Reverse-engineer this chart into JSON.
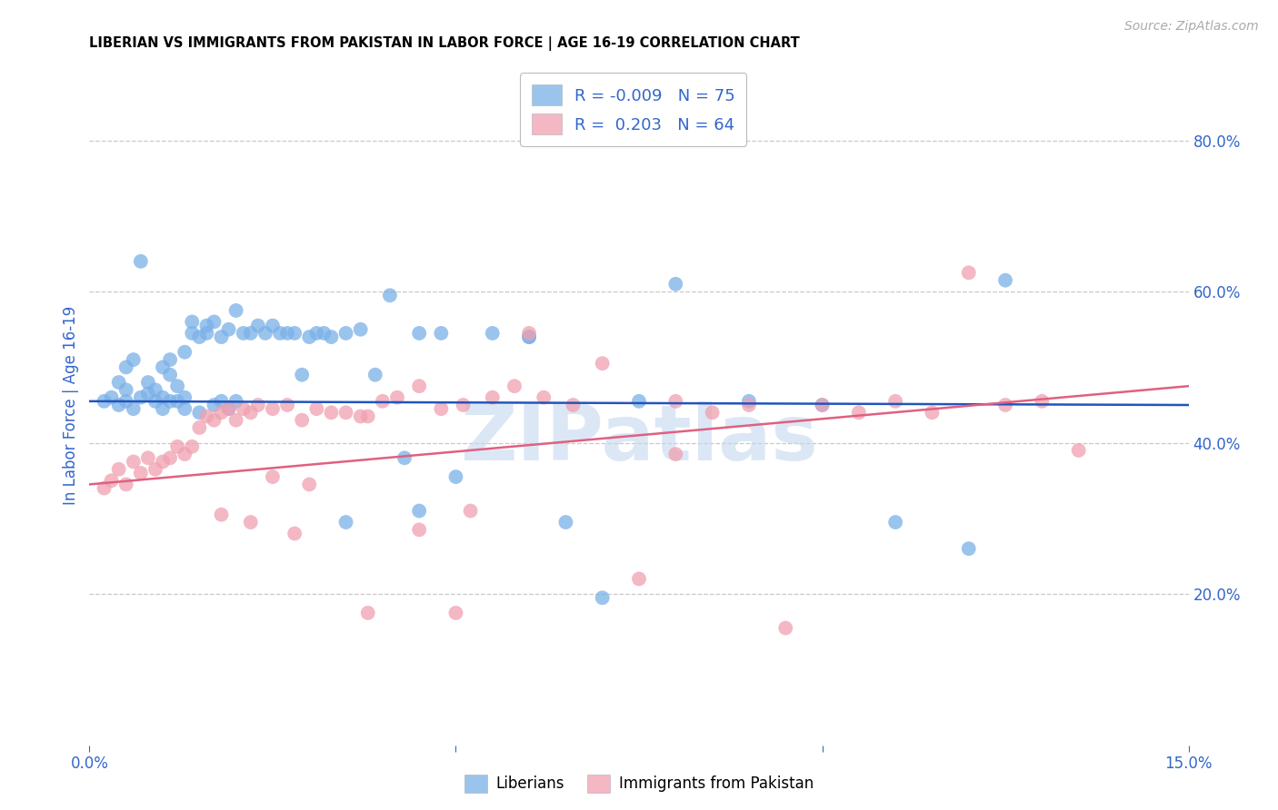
{
  "title": "LIBERIAN VS IMMIGRANTS FROM PAKISTAN IN LABOR FORCE | AGE 16-19 CORRELATION CHART",
  "source": "Source: ZipAtlas.com",
  "ylabel": "In Labor Force | Age 16-19",
  "xlim": [
    0.0,
    0.15
  ],
  "ylim": [
    0.0,
    0.9
  ],
  "xtick_positions": [
    0.0,
    0.05,
    0.1,
    0.15
  ],
  "xticklabels": [
    "0.0%",
    "",
    "",
    "15.0%"
  ],
  "yticks_right": [
    0.2,
    0.4,
    0.6,
    0.8
  ],
  "ytick_labels_right": [
    "20.0%",
    "40.0%",
    "60.0%",
    "80.0%"
  ],
  "grid_color": "#c8c8c8",
  "background_color": "#ffffff",
  "blue_color": "#7ab0e8",
  "pink_color": "#f0a0b0",
  "blue_line_color": "#2255bb",
  "pink_line_color": "#e06080",
  "R_blue": -0.009,
  "N_blue": 75,
  "R_pink": 0.203,
  "N_pink": 64,
  "legend_label_blue": "Liberians",
  "legend_label_pink": "Immigrants from Pakistan",
  "axis_label_color": "#3366cc",
  "tick_label_color": "#3366cc",
  "watermark_text": "ZIPatlas",
  "watermark_color": "#c5d8f0",
  "blue_line_y0": 0.455,
  "blue_line_y1": 0.45,
  "pink_line_y0": 0.345,
  "pink_line_y1": 0.475,
  "blue_points_x": [
    0.002,
    0.003,
    0.004,
    0.004,
    0.005,
    0.005,
    0.005,
    0.006,
    0.006,
    0.007,
    0.007,
    0.008,
    0.008,
    0.009,
    0.009,
    0.01,
    0.01,
    0.01,
    0.011,
    0.011,
    0.011,
    0.012,
    0.012,
    0.013,
    0.013,
    0.013,
    0.014,
    0.014,
    0.015,
    0.015,
    0.016,
    0.016,
    0.017,
    0.017,
    0.018,
    0.018,
    0.019,
    0.019,
    0.02,
    0.02,
    0.021,
    0.022,
    0.023,
    0.024,
    0.025,
    0.026,
    0.027,
    0.028,
    0.029,
    0.03,
    0.031,
    0.032,
    0.033,
    0.035,
    0.037,
    0.039,
    0.041,
    0.043,
    0.045,
    0.048,
    0.05,
    0.055,
    0.06,
    0.065,
    0.07,
    0.075,
    0.08,
    0.09,
    0.1,
    0.11,
    0.12,
    0.125,
    0.06,
    0.045,
    0.035
  ],
  "blue_points_y": [
    0.455,
    0.46,
    0.48,
    0.45,
    0.455,
    0.47,
    0.5,
    0.445,
    0.51,
    0.46,
    0.64,
    0.465,
    0.48,
    0.455,
    0.47,
    0.445,
    0.5,
    0.46,
    0.455,
    0.49,
    0.51,
    0.455,
    0.475,
    0.445,
    0.52,
    0.46,
    0.545,
    0.56,
    0.44,
    0.54,
    0.555,
    0.545,
    0.45,
    0.56,
    0.455,
    0.54,
    0.445,
    0.55,
    0.455,
    0.575,
    0.545,
    0.545,
    0.555,
    0.545,
    0.555,
    0.545,
    0.545,
    0.545,
    0.49,
    0.54,
    0.545,
    0.545,
    0.54,
    0.545,
    0.55,
    0.49,
    0.595,
    0.38,
    0.545,
    0.545,
    0.355,
    0.545,
    0.54,
    0.295,
    0.195,
    0.455,
    0.61,
    0.455,
    0.45,
    0.295,
    0.26,
    0.615,
    0.54,
    0.31,
    0.295
  ],
  "pink_points_x": [
    0.002,
    0.003,
    0.004,
    0.005,
    0.006,
    0.007,
    0.008,
    0.009,
    0.01,
    0.011,
    0.012,
    0.013,
    0.014,
    0.015,
    0.016,
    0.017,
    0.018,
    0.019,
    0.02,
    0.021,
    0.022,
    0.023,
    0.025,
    0.027,
    0.029,
    0.031,
    0.033,
    0.035,
    0.037,
    0.04,
    0.042,
    0.045,
    0.048,
    0.051,
    0.055,
    0.058,
    0.062,
    0.066,
    0.07,
    0.075,
    0.08,
    0.085,
    0.09,
    0.095,
    0.1,
    0.105,
    0.11,
    0.115,
    0.12,
    0.125,
    0.13,
    0.135,
    0.025,
    0.03,
    0.038,
    0.045,
    0.052,
    0.018,
    0.022,
    0.028,
    0.038,
    0.05,
    0.06,
    0.08
  ],
  "pink_points_y": [
    0.34,
    0.35,
    0.365,
    0.345,
    0.375,
    0.36,
    0.38,
    0.365,
    0.375,
    0.38,
    0.395,
    0.385,
    0.395,
    0.42,
    0.435,
    0.43,
    0.44,
    0.445,
    0.43,
    0.445,
    0.44,
    0.45,
    0.445,
    0.45,
    0.43,
    0.445,
    0.44,
    0.44,
    0.435,
    0.455,
    0.46,
    0.475,
    0.445,
    0.45,
    0.46,
    0.475,
    0.46,
    0.45,
    0.505,
    0.22,
    0.455,
    0.44,
    0.45,
    0.155,
    0.45,
    0.44,
    0.455,
    0.44,
    0.625,
    0.45,
    0.455,
    0.39,
    0.355,
    0.345,
    0.435,
    0.285,
    0.31,
    0.305,
    0.295,
    0.28,
    0.175,
    0.175,
    0.545,
    0.385
  ]
}
